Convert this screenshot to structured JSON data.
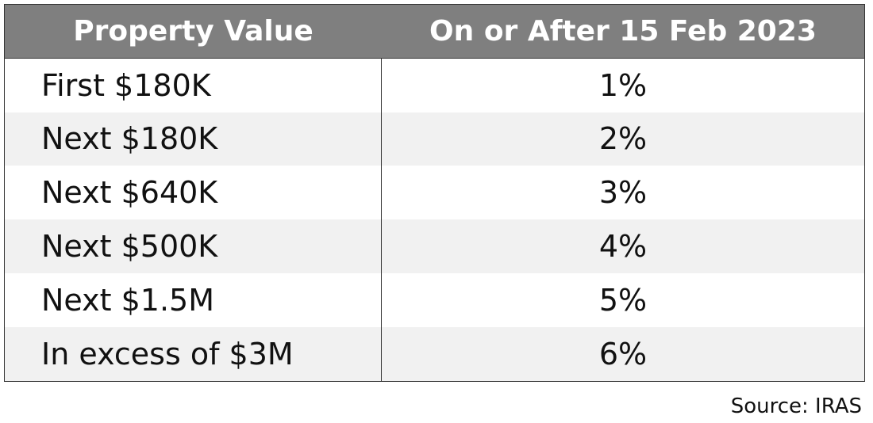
{
  "table": {
    "header": [
      "Property Value",
      "On or After 15 Feb 2023"
    ],
    "rows": [
      [
        "First $180K",
        "1%"
      ],
      [
        "Next $180K",
        "2%"
      ],
      [
        "Next $640K",
        "3%"
      ],
      [
        "Next $500K",
        "4%"
      ],
      [
        "Next $1.5M",
        "5%"
      ],
      [
        "In excess of $3M",
        "6%"
      ]
    ]
  },
  "source": "Source: IRAS"
}
